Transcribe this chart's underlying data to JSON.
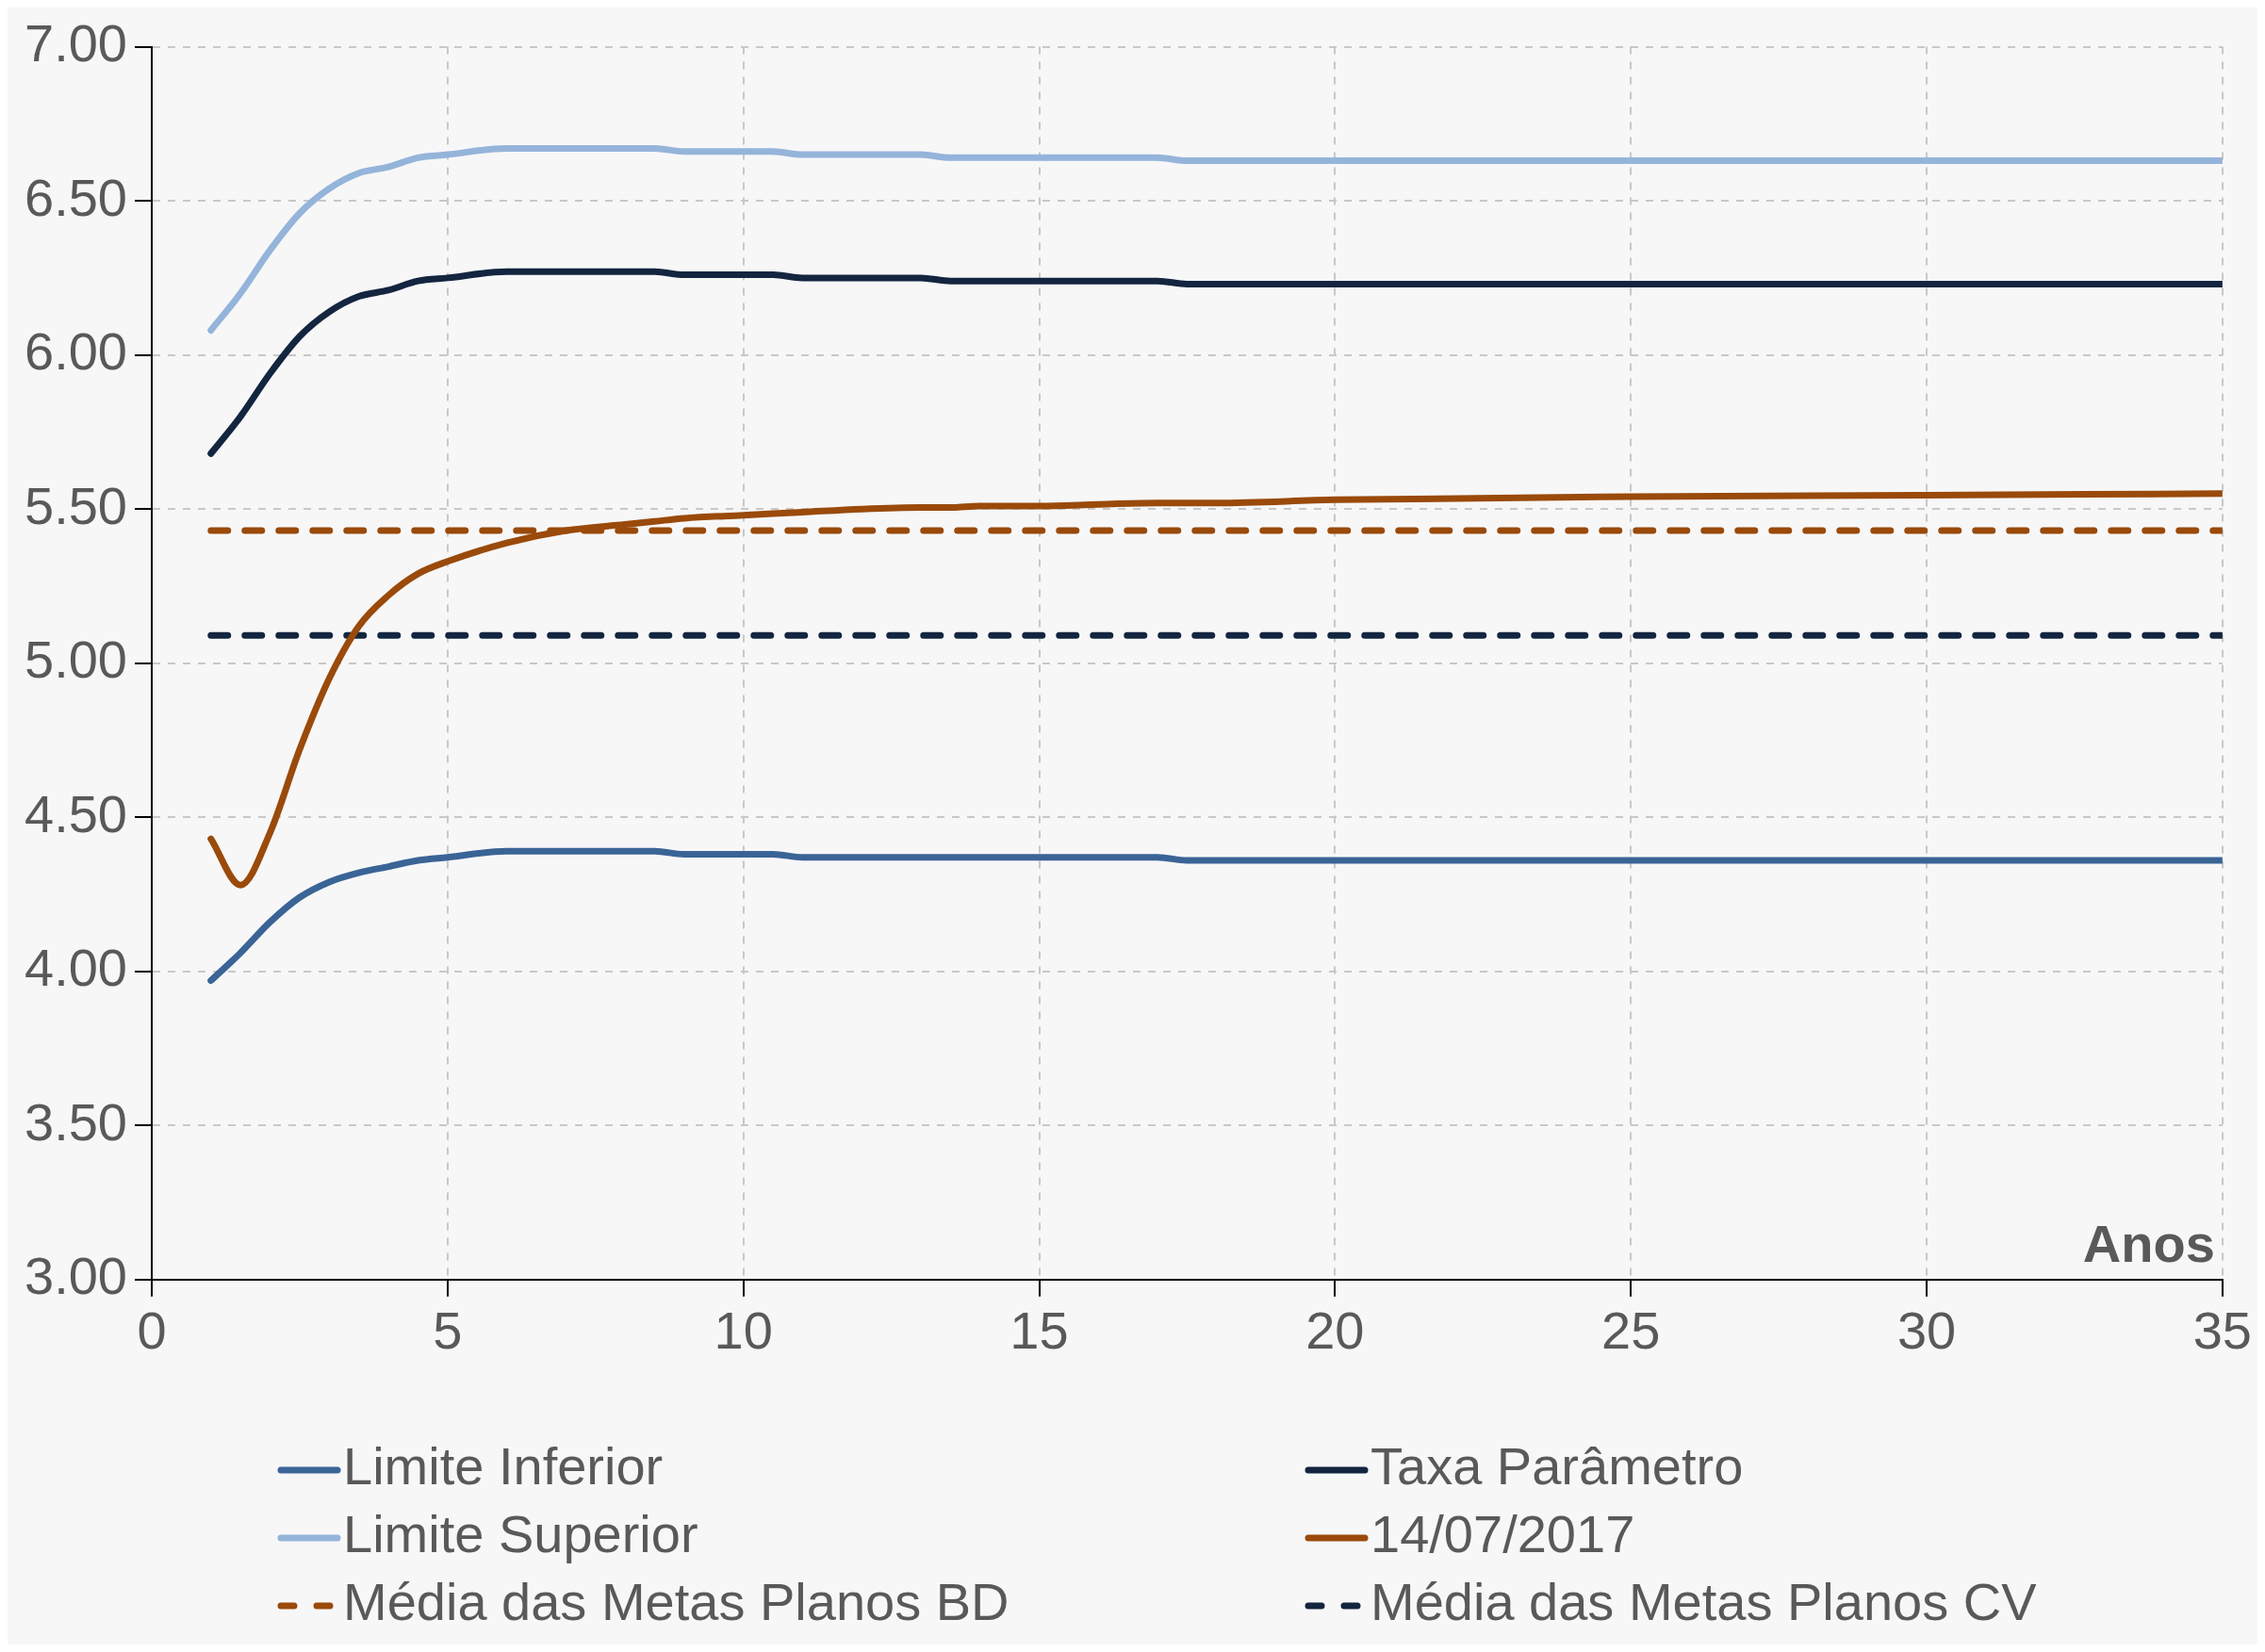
{
  "chart_data": {
    "type": "line",
    "xlabel": "Anos",
    "xlim": [
      0,
      35
    ],
    "xticks": [
      0,
      5,
      10,
      15,
      20,
      25,
      30,
      35
    ],
    "ylim": [
      3,
      7
    ],
    "yticks": [
      {
        "value": 3,
        "label": "3.00"
      },
      {
        "value": 3.5,
        "label": "3.50"
      },
      {
        "value": 4,
        "label": "4.00"
      },
      {
        "value": 4.5,
        "label": "4.50"
      },
      {
        "value": 5,
        "label": "5.00"
      },
      {
        "value": 5.5,
        "label": "5.50"
      },
      {
        "value": 6,
        "label": "6.00"
      },
      {
        "value": 6.5,
        "label": "6.50"
      },
      {
        "value": 7,
        "label": "7.00"
      }
    ],
    "grid": true,
    "legend": "bottom",
    "marker": "none",
    "x": [
      1,
      1.5,
      2,
      2.5,
      3,
      3.5,
      4,
      4.5,
      5,
      6,
      7,
      8,
      8.5,
      9,
      10,
      10.5,
      11,
      12,
      13,
      13.5,
      14,
      15,
      16,
      17,
      17.5,
      18,
      20,
      25,
      30,
      35
    ],
    "series": [
      {
        "name": "Limite Inferior",
        "color": "#3a6496",
        "values": [
          3.97,
          4.06,
          4.16,
          4.24,
          4.29,
          4.32,
          4.34,
          4.36,
          4.37,
          4.39,
          4.39,
          4.39,
          4.39,
          4.38,
          4.38,
          4.38,
          4.37,
          4.37,
          4.37,
          4.37,
          4.37,
          4.37,
          4.37,
          4.37,
          4.36,
          4.36,
          4.36,
          4.36,
          4.36,
          4.36
        ]
      },
      {
        "name": "Taxa Parâmetro",
        "color": "#13253f",
        "values": [
          5.68,
          5.8,
          5.94,
          6.06,
          6.14,
          6.19,
          6.21,
          6.24,
          6.25,
          6.27,
          6.27,
          6.27,
          6.27,
          6.26,
          6.26,
          6.26,
          6.25,
          6.25,
          6.25,
          6.24,
          6.24,
          6.24,
          6.24,
          6.24,
          6.23,
          6.23,
          6.23,
          6.23,
          6.23,
          6.23
        ]
      },
      {
        "name": "Limite Superior",
        "color": "#95b4da",
        "values": [
          6.08,
          6.2,
          6.34,
          6.46,
          6.54,
          6.59,
          6.61,
          6.64,
          6.65,
          6.67,
          6.67,
          6.67,
          6.67,
          6.66,
          6.66,
          6.66,
          6.65,
          6.65,
          6.65,
          6.64,
          6.64,
          6.64,
          6.64,
          6.64,
          6.63,
          6.63,
          6.63,
          6.63,
          6.63,
          6.63
        ]
      },
      {
        "name": "14/07/2017",
        "color": "#9a4a0a",
        "values": [
          4.43,
          4.28,
          4.45,
          4.72,
          4.95,
          5.12,
          5.22,
          5.29,
          5.33,
          5.39,
          5.43,
          5.45,
          5.46,
          5.47,
          5.48,
          5.485,
          5.49,
          5.5,
          5.505,
          5.505,
          5.51,
          5.51,
          5.515,
          5.52,
          5.52,
          5.52,
          5.53,
          5.54,
          5.545,
          5.55
        ]
      },
      {
        "name": "Média das Metas Planos BD",
        "color": "#9a4a0a",
        "line_style": "dashed",
        "values": [
          5.43,
          5.43,
          5.43,
          5.43,
          5.43,
          5.43,
          5.43,
          5.43,
          5.43,
          5.43,
          5.43,
          5.43,
          5.43,
          5.43,
          5.43,
          5.43,
          5.43,
          5.43,
          5.43,
          5.43,
          5.43,
          5.43,
          5.43,
          5.43,
          5.43,
          5.43,
          5.43,
          5.43,
          5.43,
          5.43
        ]
      },
      {
        "name": "Média das Metas Planos CV",
        "color": "#13253f",
        "line_style": "dashed",
        "values": [
          5.09,
          5.09,
          5.09,
          5.09,
          5.09,
          5.09,
          5.09,
          5.09,
          5.09,
          5.09,
          5.09,
          5.09,
          5.09,
          5.09,
          5.09,
          5.09,
          5.09,
          5.09,
          5.09,
          5.09,
          5.09,
          5.09,
          5.09,
          5.09,
          5.09,
          5.09,
          5.09,
          5.09,
          5.09,
          5.09
        ]
      }
    ]
  }
}
